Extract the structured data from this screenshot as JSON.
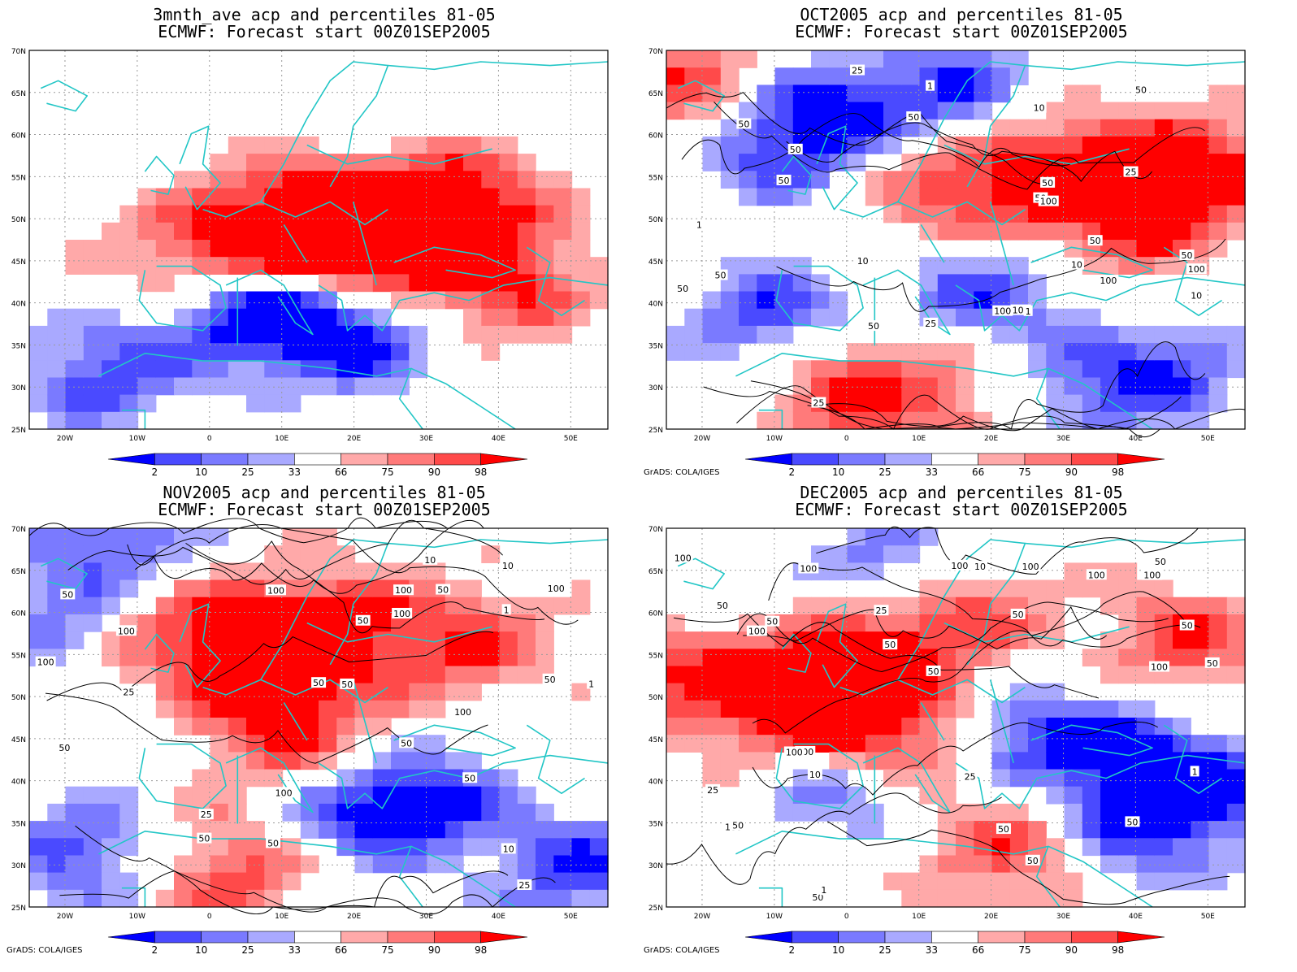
{
  "panels": [
    {
      "title_line1": "3mnth_ave acp and percentiles 81-05",
      "title_line2": "ECMWF: Forecast start 00Z01SEP2005",
      "credit": "",
      "contour_labels": [],
      "colors": {
        "pos": [
          [
            0.3,
            0.55
          ],
          [
            0.45,
            0.45
          ],
          [
            0.62,
            0.48
          ],
          [
            0.75,
            0.4
          ],
          [
            0.82,
            0.62
          ],
          [
            0.55,
            0.52
          ]
        ],
        "neg": [
          [
            0.13,
            0.85
          ],
          [
            0.45,
            0.7
          ],
          [
            0.58,
            0.76
          ],
          [
            0.36,
            0.68
          ]
        ]
      }
    },
    {
      "title_line1": "OCT2005 acp and percentiles 81-05",
      "title_line2": "ECMWF: Forecast start 00Z01SEP2005",
      "credit": "GrADS: COLA/IGES",
      "contour_labels": [
        "50",
        "50",
        "50",
        "100",
        "100",
        "100",
        "100",
        "50",
        "50",
        "50",
        "50",
        "100",
        "50",
        "50",
        "25",
        "50",
        "25",
        "10",
        "10",
        "25",
        "10",
        "1",
        "1",
        "1",
        "25",
        "10",
        "50",
        "50"
      ],
      "colors": {
        "pos": [
          [
            0.5,
            0.35
          ],
          [
            0.7,
            0.3
          ],
          [
            0.8,
            0.45
          ],
          [
            0.95,
            0.3
          ],
          [
            0.05,
            0.1
          ],
          [
            0.3,
            0.9
          ],
          [
            0.55,
            0.9
          ]
        ],
        "neg": [
          [
            0.18,
            0.25
          ],
          [
            0.28,
            0.15
          ],
          [
            0.18,
            0.7
          ],
          [
            0.5,
            0.12
          ],
          [
            0.55,
            0.65
          ],
          [
            0.85,
            0.85
          ],
          [
            0.65,
            0.9
          ]
        ]
      }
    },
    {
      "title_line1": "NOV2005 acp and percentiles 81-05",
      "title_line2": "ECMWF: Forecast start 00Z01SEP2005",
      "credit": "GrADS: COLA/IGES",
      "contour_labels": [
        "100",
        "100",
        "50",
        "50",
        "50",
        "100",
        "100",
        "100",
        "100",
        "100",
        "50",
        "100",
        "50",
        "50",
        "50",
        "50",
        "50",
        "50",
        "25",
        "10",
        "25",
        "10",
        "50",
        "1",
        "1",
        "25",
        "10"
      ],
      "colors": {
        "pos": [
          [
            0.2,
            0.25
          ],
          [
            0.4,
            0.35
          ],
          [
            0.5,
            0.25
          ],
          [
            0.75,
            0.3
          ],
          [
            0.45,
            0.55
          ],
          [
            0.35,
            0.9
          ]
        ],
        "neg": [
          [
            0.55,
            0.75
          ],
          [
            0.7,
            0.72
          ],
          [
            0.1,
            0.85
          ],
          [
            0.95,
            0.9
          ],
          [
            0.08,
            0.25
          ],
          [
            0.15,
            0.05
          ]
        ]
      }
    },
    {
      "title_line1": "DEC2005 acp and percentiles 81-05",
      "title_line2": "ECMWF: Forecast start 00Z01SEP2005",
      "credit": "GrADS: COLA/IGES",
      "contour_labels": [
        "100",
        "100",
        "100",
        "50",
        "50",
        "50",
        "100",
        "50",
        "100",
        "100",
        "100",
        "100",
        "50",
        "100",
        "100",
        "50",
        "50",
        "100",
        "50",
        "50",
        "25",
        "10",
        "50",
        "25",
        "10",
        "1",
        "1",
        "25",
        "50",
        "50",
        "50"
      ],
      "colors": {
        "pos": [
          [
            0.35,
            0.35
          ],
          [
            0.5,
            0.2
          ],
          [
            0.25,
            0.5
          ],
          [
            0.4,
            0.55
          ],
          [
            0.9,
            0.3
          ],
          [
            0.6,
            0.85
          ],
          [
            0.05,
            0.4
          ]
        ],
        "neg": [
          [
            0.3,
            0.68
          ],
          [
            0.62,
            0.55
          ],
          [
            0.8,
            0.6
          ],
          [
            0.4,
            0.1
          ],
          [
            0.95,
            0.7
          ],
          [
            0.8,
            0.8
          ]
        ]
      }
    }
  ],
  "axes": {
    "lat_labels": [
      "70N",
      "65N",
      "60N",
      "55N",
      "50N",
      "45N",
      "40N",
      "35N",
      "30N",
      "25N"
    ],
    "lon_labels": [
      "20W",
      "10W",
      "0",
      "10E",
      "20E",
      "30E",
      "40E",
      "50E"
    ]
  },
  "colorbar": {
    "labels": [
      "2",
      "10",
      "25",
      "33",
      "66",
      "75",
      "90",
      "98"
    ],
    "colors": [
      "#0000ff",
      "#4a4aff",
      "#7a7aff",
      "#a9a9ff",
      "#ffffff",
      "#ffa9a9",
      "#ff7a7a",
      "#ff4a4a",
      "#ff0000"
    ]
  }
}
